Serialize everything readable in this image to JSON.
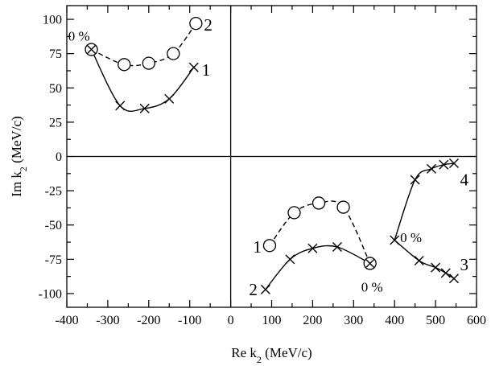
{
  "chart_data": {
    "type": "scatter",
    "xlabel": {
      "main": "Re k",
      "sub": "2",
      "unit": " (MeV/c)"
    },
    "ylabel": {
      "main": "Im k",
      "sub": "2",
      "unit": " (MeV/c)"
    },
    "xlim": [
      -400,
      600
    ],
    "ylim": [
      -110,
      110
    ],
    "xticks": [
      -400,
      -300,
      -200,
      -100,
      0,
      100,
      200,
      300,
      400,
      500,
      600
    ],
    "yticks": [
      -100,
      -75,
      -50,
      -25,
      0,
      25,
      50,
      75,
      100
    ],
    "zero_lines": true,
    "series": [
      {
        "id": "upper-solid",
        "line": "solid",
        "marker": "cross",
        "points": [
          [
            -340,
            78
          ],
          [
            -270,
            37
          ],
          [
            -210,
            35
          ],
          [
            -150,
            42
          ],
          [
            -90,
            65
          ]
        ],
        "crossed_circle_first": true
      },
      {
        "id": "upper-dashed",
        "line": "dashed",
        "marker": "circle",
        "points": [
          [
            -340,
            78
          ],
          [
            -260,
            67
          ],
          [
            -200,
            68
          ],
          [
            -140,
            75
          ],
          [
            -85,
            97
          ]
        ]
      },
      {
        "id": "lower-solid",
        "line": "solid",
        "marker": "cross",
        "points": [
          [
            85,
            -97
          ],
          [
            145,
            -75
          ],
          [
            200,
            -67
          ],
          [
            260,
            -66
          ],
          [
            340,
            -78
          ]
        ]
      },
      {
        "id": "lower-dashed",
        "line": "dashed",
        "marker": "circle",
        "points": [
          [
            95,
            -65
          ],
          [
            155,
            -41
          ],
          [
            215,
            -34
          ],
          [
            275,
            -37
          ],
          [
            340,
            -78
          ]
        ],
        "crossed_circle_last": true
      },
      {
        "id": "right-4",
        "line": "solid",
        "marker": "cross",
        "points": [
          [
            400,
            -61
          ],
          [
            450,
            -17
          ],
          [
            490,
            -9
          ],
          [
            520,
            -6
          ],
          [
            545,
            -5
          ]
        ]
      },
      {
        "id": "right-3",
        "line": "solid",
        "marker": "cross",
        "points": [
          [
            400,
            -61
          ],
          [
            460,
            -76
          ],
          [
            500,
            -81
          ],
          [
            525,
            -85
          ],
          [
            545,
            -89
          ]
        ]
      }
    ],
    "curve_labels": [
      {
        "text": "2",
        "x": -55,
        "y": 96
      },
      {
        "text": "1",
        "x": -60,
        "y": 63
      },
      {
        "text": "1",
        "x": 65,
        "y": -66
      },
      {
        "text": "2",
        "x": 55,
        "y": -97
      },
      {
        "text": "4",
        "x": 570,
        "y": -17
      },
      {
        "text": "3",
        "x": 570,
        "y": -79
      }
    ],
    "pct_labels": [
      {
        "text": "0 %",
        "x": -370,
        "y": 88
      },
      {
        "text": "0 %",
        "x": 345,
        "y": -95
      },
      {
        "text": "0 %",
        "x": 440,
        "y": -59
      }
    ]
  }
}
